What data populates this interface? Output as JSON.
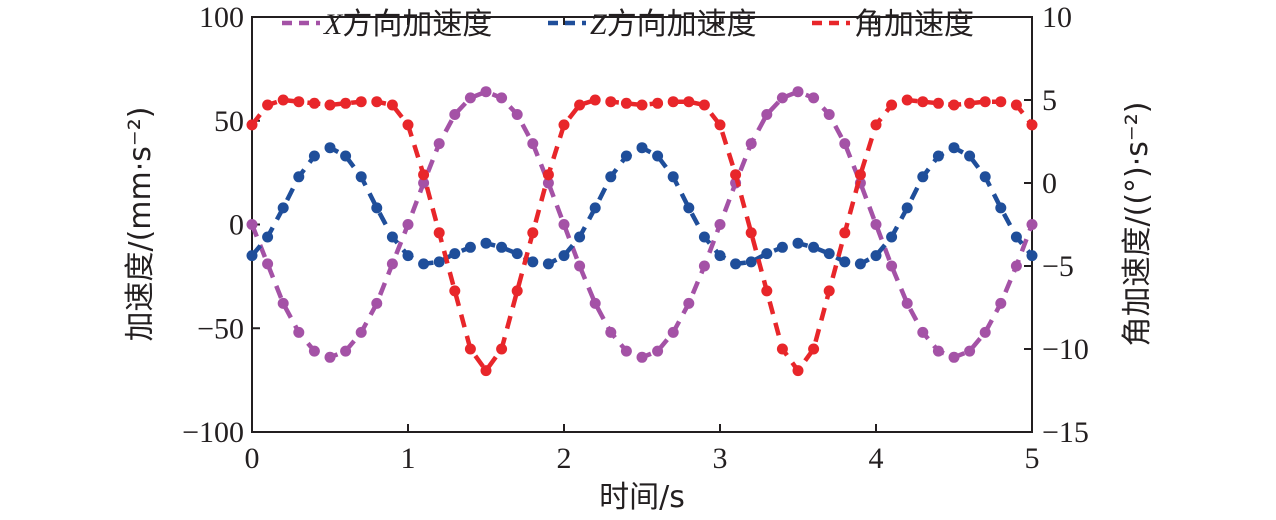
{
  "chart_data": {
    "type": "line",
    "xlabel": "时间/s",
    "ylabel_left": "加速度/(mm·s⁻²)",
    "ylabel_right": "角加速度/((°)·s⁻²)",
    "xlim": [
      0,
      5
    ],
    "ylim_left": [
      -100,
      100
    ],
    "ylim_right": [
      -15,
      10
    ],
    "x_ticks": [
      "0",
      "1",
      "2",
      "3",
      "4",
      "5"
    ],
    "y_left_ticks": [
      "−100",
      "−50",
      "0",
      "50",
      "100"
    ],
    "y_right_ticks": [
      "−15",
      "−10",
      "−5",
      "0",
      "5",
      "10"
    ],
    "grid": false,
    "legend_position": "top",
    "series": [
      {
        "name": "X方向加速度",
        "legend_var": "X",
        "legend_text": "方向加速度",
        "axis": "left",
        "color": "#a452a6",
        "x": [
          0,
          0.1,
          0.2,
          0.3,
          0.4,
          0.5,
          0.6,
          0.7,
          0.8,
          0.9,
          1.0,
          1.1,
          1.2,
          1.3,
          1.4,
          1.5,
          1.6,
          1.7,
          1.8,
          1.9,
          2.0,
          2.1,
          2.2,
          2.3,
          2.4,
          2.5,
          2.6,
          2.7,
          2.8,
          2.9,
          3.0,
          3.1,
          3.2,
          3.3,
          3.4,
          3.5,
          3.6,
          3.7,
          3.8,
          3.9,
          4.0,
          4.1,
          4.2,
          4.3,
          4.4,
          4.5,
          4.6,
          4.7,
          4.8,
          4.9,
          5.0
        ],
        "values": [
          0,
          -19,
          -38,
          -52,
          -61,
          -64,
          -61,
          -52,
          -38,
          -19,
          0,
          20,
          39,
          53,
          61,
          64,
          61,
          53,
          39,
          20,
          0,
          -20,
          -38,
          -52,
          -61,
          -64,
          -61,
          -52,
          -38,
          -20,
          0,
          20,
          39,
          53,
          61,
          64,
          61,
          53,
          39,
          20,
          0,
          -20,
          -38,
          -52,
          -61,
          -64,
          -61,
          -52,
          -38,
          -20,
          0
        ]
      },
      {
        "name": "Z方向加速度",
        "legend_var": "Z",
        "legend_text": "方向加速度",
        "axis": "left",
        "color": "#1f4e9a",
        "x": [
          0,
          0.1,
          0.2,
          0.3,
          0.4,
          0.5,
          0.6,
          0.7,
          0.8,
          0.9,
          1.0,
          1.1,
          1.2,
          1.3,
          1.4,
          1.5,
          1.6,
          1.7,
          1.8,
          1.9,
          2.0,
          2.1,
          2.2,
          2.3,
          2.4,
          2.5,
          2.6,
          2.7,
          2.8,
          2.9,
          3.0,
          3.1,
          3.2,
          3.3,
          3.4,
          3.5,
          3.6,
          3.7,
          3.8,
          3.9,
          4.0,
          4.1,
          4.2,
          4.3,
          4.4,
          4.5,
          4.6,
          4.7,
          4.8,
          4.9,
          5.0
        ],
        "values": [
          -15,
          -6,
          8,
          23,
          33,
          37,
          33,
          23,
          8,
          -6,
          -15,
          -19,
          -18,
          -14,
          -11,
          -9,
          -11,
          -14,
          -18,
          -19,
          -15,
          -6,
          8,
          23,
          33,
          37,
          33,
          23,
          8,
          -6,
          -15,
          -19,
          -18,
          -14,
          -11,
          -9,
          -11,
          -14,
          -18,
          -19,
          -15,
          -6,
          8,
          23,
          33,
          37,
          33,
          23,
          8,
          -6,
          -15
        ]
      },
      {
        "name": "角加速度",
        "legend_var": "",
        "legend_text": "角加速度",
        "axis": "right",
        "color": "#e8262a",
        "x": [
          0,
          0.1,
          0.2,
          0.3,
          0.4,
          0.5,
          0.6,
          0.7,
          0.8,
          0.9,
          1.0,
          1.1,
          1.2,
          1.3,
          1.4,
          1.5,
          1.6,
          1.7,
          1.8,
          1.9,
          2.0,
          2.1,
          2.2,
          2.3,
          2.4,
          2.5,
          2.6,
          2.7,
          2.8,
          2.9,
          3.0,
          3.1,
          3.2,
          3.3,
          3.4,
          3.5,
          3.6,
          3.7,
          3.8,
          3.9,
          4.0,
          4.1,
          4.2,
          4.3,
          4.4,
          4.5,
          4.6,
          4.7,
          4.8,
          4.9,
          5.0
        ],
        "values": [
          3.5,
          4.7,
          5.0,
          4.9,
          4.8,
          4.7,
          4.8,
          4.9,
          4.9,
          4.7,
          3.5,
          0.5,
          -3.0,
          -6.5,
          -10.0,
          -11.3,
          -10.0,
          -6.5,
          -3.0,
          0.5,
          3.5,
          4.7,
          5.0,
          4.9,
          4.8,
          4.7,
          4.8,
          4.9,
          4.9,
          4.7,
          3.5,
          0.5,
          -3.0,
          -6.5,
          -10.0,
          -11.3,
          -10.0,
          -6.5,
          -3.0,
          0.5,
          3.5,
          4.7,
          5.0,
          4.9,
          4.8,
          4.7,
          4.8,
          4.9,
          4.9,
          4.7,
          3.5
        ]
      }
    ]
  }
}
